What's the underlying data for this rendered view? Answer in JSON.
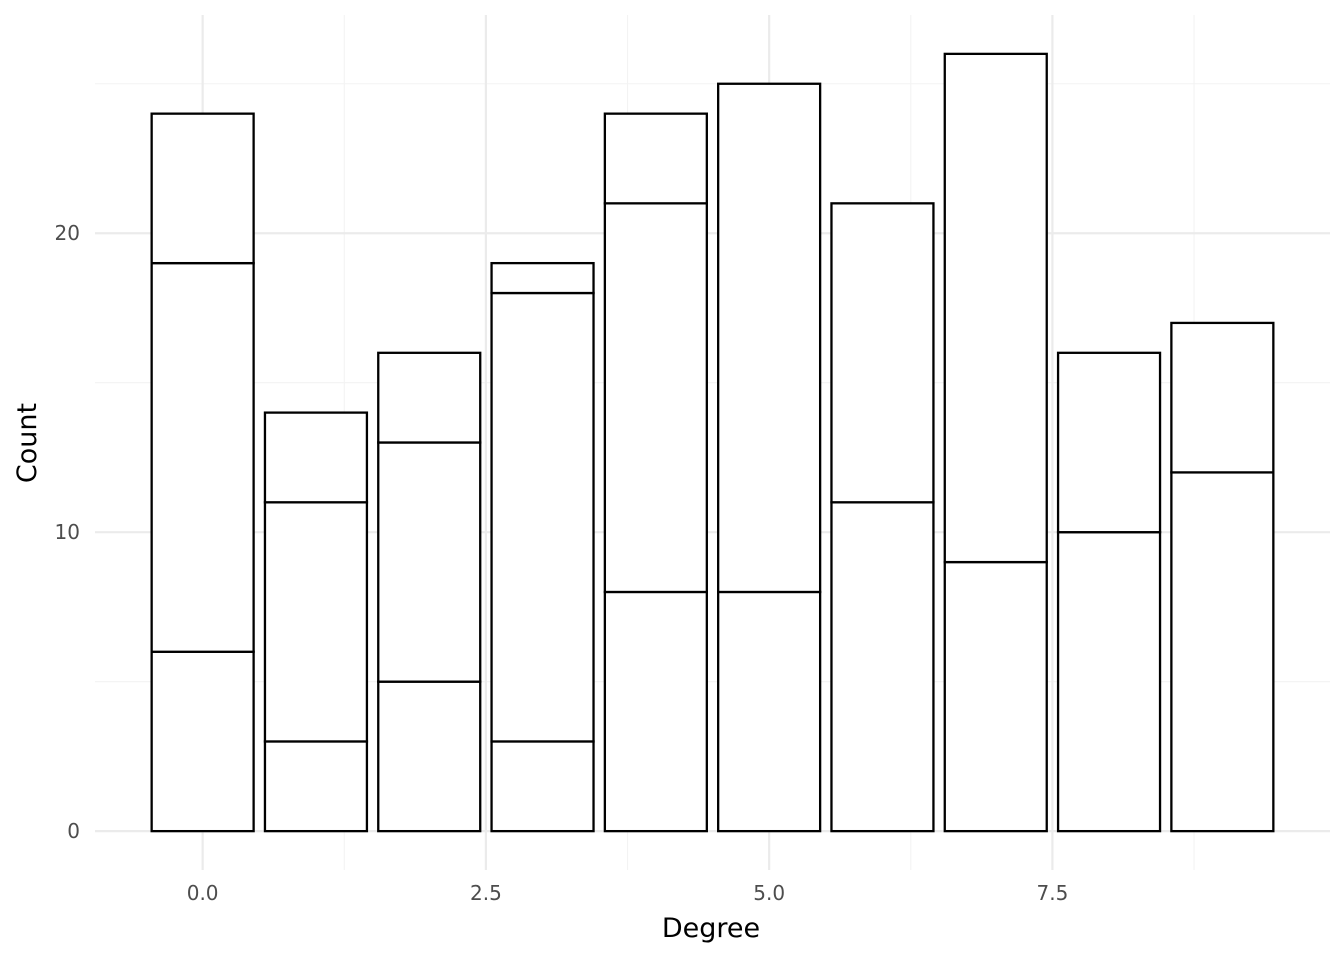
{
  "chart_data": {
    "type": "bar",
    "stacked": true,
    "xlabel": "Degree",
    "ylabel": "Count",
    "x": [
      0,
      1,
      2,
      3,
      4,
      5,
      6,
      7,
      8,
      9
    ],
    "segment_boundaries": [
      [
        6,
        19,
        24
      ],
      [
        3,
        11,
        14
      ],
      [
        5,
        13,
        16
      ],
      [
        3,
        18,
        19
      ],
      [
        8,
        21,
        24
      ],
      [
        8,
        25
      ],
      [
        11,
        21
      ],
      [
        9,
        26
      ],
      [
        10,
        16
      ],
      [
        12,
        17
      ]
    ],
    "totals": [
      24,
      14,
      16,
      19,
      24,
      25,
      21,
      26,
      16,
      17
    ],
    "xlim": [
      -0.95,
      9.95
    ],
    "ylim": [
      -1.3,
      27.3
    ],
    "x_ticks": [
      0,
      2.5,
      5,
      7.5
    ],
    "x_tick_labels": [
      "0.0",
      "2.5",
      "5.0",
      "7.5"
    ],
    "y_ticks": [
      0,
      10,
      20
    ],
    "y_tick_labels": [
      "0",
      "10",
      "20"
    ],
    "bar_fill": "#ffffff",
    "bar_outline": "#000000",
    "grid": true,
    "legend": "none"
  }
}
